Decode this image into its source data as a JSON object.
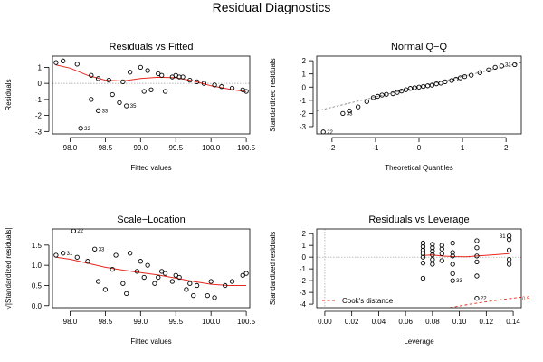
{
  "title": "Residual Diagnostics",
  "chart_data": [
    {
      "type": "scatter",
      "title": "Residuals vs Fitted",
      "xlabel": "Fitted values",
      "ylabel": "Residuals",
      "xlim": [
        97.75,
        100.55
      ],
      "ylim": [
        -3.15,
        1.7
      ],
      "xticks": [
        98.0,
        98.5,
        99.0,
        99.5,
        100.0,
        100.5
      ],
      "xtick_labels": [
        "98.0",
        "98.5",
        "99.0",
        "99.5",
        "100.0",
        "100.5"
      ],
      "yticks": [
        -3,
        -2,
        -1,
        0,
        1
      ],
      "ytick_labels": [
        "-3",
        "-2",
        "-1",
        "0",
        "1"
      ],
      "refline_y": 0,
      "points": [
        {
          "x": 97.8,
          "y": 1.3
        },
        {
          "x": 97.9,
          "y": 1.4
        },
        {
          "x": 98.1,
          "y": 1.2
        },
        {
          "x": 98.3,
          "y": 0.5
        },
        {
          "x": 98.4,
          "y": 0.3
        },
        {
          "x": 98.55,
          "y": 0.2
        },
        {
          "x": 98.75,
          "y": 0.1
        },
        {
          "x": 98.85,
          "y": 0.7
        },
        {
          "x": 99.0,
          "y": 1.0
        },
        {
          "x": 99.1,
          "y": 0.8
        },
        {
          "x": 99.25,
          "y": 0.6
        },
        {
          "x": 99.3,
          "y": 0.5
        },
        {
          "x": 99.45,
          "y": 0.4
        },
        {
          "x": 99.5,
          "y": 0.5
        },
        {
          "x": 99.55,
          "y": 0.4
        },
        {
          "x": 99.7,
          "y": 0.2
        },
        {
          "x": 99.8,
          "y": 0.1
        },
        {
          "x": 99.9,
          "y": 0.0
        },
        {
          "x": 100.05,
          "y": -0.1
        },
        {
          "x": 100.15,
          "y": -0.2
        },
        {
          "x": 100.3,
          "y": -0.3
        },
        {
          "x": 100.45,
          "y": -0.4
        },
        {
          "x": 100.5,
          "y": -0.5
        },
        {
          "x": 98.3,
          "y": -1.0
        },
        {
          "x": 98.4,
          "y": -1.7
        },
        {
          "x": 98.6,
          "y": -0.7
        },
        {
          "x": 98.7,
          "y": -1.2
        },
        {
          "x": 98.8,
          "y": -1.4
        },
        {
          "x": 99.05,
          "y": -0.5
        },
        {
          "x": 99.15,
          "y": -0.4
        },
        {
          "x": 99.35,
          "y": -0.5
        },
        {
          "x": 99.6,
          "y": 0.4
        },
        {
          "x": 98.15,
          "y": -2.8
        }
      ],
      "smooth": [
        {
          "x": 97.8,
          "y": 1.15
        },
        {
          "x": 98.0,
          "y": 0.95
        },
        {
          "x": 98.25,
          "y": 0.5
        },
        {
          "x": 98.5,
          "y": 0.2
        },
        {
          "x": 98.75,
          "y": 0.15
        },
        {
          "x": 99.0,
          "y": 0.3
        },
        {
          "x": 99.25,
          "y": 0.38
        },
        {
          "x": 99.5,
          "y": 0.35
        },
        {
          "x": 99.75,
          "y": 0.15
        },
        {
          "x": 100.0,
          "y": -0.15
        },
        {
          "x": 100.25,
          "y": -0.35
        },
        {
          "x": 100.5,
          "y": -0.52
        }
      ],
      "annotations": [
        {
          "label": "22",
          "x": 98.15,
          "y": -2.8
        },
        {
          "label": "33",
          "x": 98.4,
          "y": -1.7
        },
        {
          "label": "35",
          "x": 98.8,
          "y": -1.4
        }
      ]
    },
    {
      "type": "scatter",
      "title": "Normal Q−Q",
      "xlabel": "Theoretical Quantiles",
      "ylabel": "Standardized residuals",
      "xlim": [
        -2.35,
        2.35
      ],
      "ylim": [
        -3.55,
        2.35
      ],
      "xticks": [
        -2,
        -1,
        0,
        1,
        2
      ],
      "xtick_labels": [
        "-2",
        "-1",
        "0",
        "1",
        "2"
      ],
      "yticks": [
        -3,
        -2,
        -1,
        0,
        1,
        2
      ],
      "ytick_labels": [
        "-3",
        "-2",
        "-1",
        "0",
        "1",
        "2"
      ],
      "qq_line": [
        {
          "x": -2.35,
          "y": -1.8
        },
        {
          "x": 2.35,
          "y": 1.85
        }
      ],
      "points": [
        {
          "x": -2.2,
          "y": -3.4
        },
        {
          "x": -1.75,
          "y": -2.0
        },
        {
          "x": -1.6,
          "y": -1.8
        },
        {
          "x": -1.4,
          "y": -1.5
        },
        {
          "x": -1.2,
          "y": -1.1
        },
        {
          "x": -1.05,
          "y": -0.8
        },
        {
          "x": -0.95,
          "y": -0.7
        },
        {
          "x": -0.85,
          "y": -0.6
        },
        {
          "x": -0.75,
          "y": -0.55
        },
        {
          "x": -0.6,
          "y": -0.5
        },
        {
          "x": -0.5,
          "y": -0.4
        },
        {
          "x": -0.4,
          "y": -0.3
        },
        {
          "x": -0.3,
          "y": -0.2
        },
        {
          "x": -0.2,
          "y": -0.1
        },
        {
          "x": -0.1,
          "y": -0.05
        },
        {
          "x": 0.0,
          "y": 0.0
        },
        {
          "x": 0.1,
          "y": 0.05
        },
        {
          "x": 0.2,
          "y": 0.1
        },
        {
          "x": 0.3,
          "y": 0.15
        },
        {
          "x": 0.4,
          "y": 0.25
        },
        {
          "x": 0.5,
          "y": 0.3
        },
        {
          "x": 0.6,
          "y": 0.4
        },
        {
          "x": 0.75,
          "y": 0.5
        },
        {
          "x": 0.85,
          "y": 0.6
        },
        {
          "x": 0.95,
          "y": 0.7
        },
        {
          "x": 1.05,
          "y": 0.8
        },
        {
          "x": 1.2,
          "y": 0.9
        },
        {
          "x": 1.4,
          "y": 1.1
        },
        {
          "x": 1.6,
          "y": 1.3
        },
        {
          "x": 1.75,
          "y": 1.5
        },
        {
          "x": 1.9,
          "y": 1.6
        },
        {
          "x": 2.2,
          "y": 1.7
        }
      ],
      "annotations": [
        {
          "label": "22",
          "x": -2.2,
          "y": -3.4
        },
        {
          "label": "33",
          "x": -1.75,
          "y": -2.0
        },
        {
          "label": "31",
          "x": 2.2,
          "y": 1.7
        }
      ]
    },
    {
      "type": "scatter",
      "title": "Scale−Location",
      "xlabel": "Fitted values",
      "ylabel": "√|Standardized residuals|",
      "xlim": [
        97.75,
        100.55
      ],
      "ylim": [
        -0.05,
        1.9
      ],
      "xticks": [
        98.0,
        98.5,
        99.0,
        99.5,
        100.0,
        100.5
      ],
      "xtick_labels": [
        "98.0",
        "98.5",
        "99.0",
        "99.5",
        "100.0",
        "100.5"
      ],
      "yticks": [
        0.0,
        0.5,
        1.0,
        1.5
      ],
      "ytick_labels": [
        "0.0",
        "0.5",
        "1.0",
        "1.5"
      ],
      "points": [
        {
          "x": 97.8,
          "y": 1.25
        },
        {
          "x": 97.9,
          "y": 1.3
        },
        {
          "x": 98.05,
          "y": 1.85
        },
        {
          "x": 98.1,
          "y": 1.2
        },
        {
          "x": 98.25,
          "y": 1.1
        },
        {
          "x": 98.35,
          "y": 1.4
        },
        {
          "x": 98.4,
          "y": 0.6
        },
        {
          "x": 98.5,
          "y": 0.4
        },
        {
          "x": 98.6,
          "y": 0.9
        },
        {
          "x": 98.65,
          "y": 1.25
        },
        {
          "x": 98.75,
          "y": 0.55
        },
        {
          "x": 98.8,
          "y": 0.3
        },
        {
          "x": 98.85,
          "y": 1.3
        },
        {
          "x": 98.95,
          "y": 0.85
        },
        {
          "x": 99.0,
          "y": 1.1
        },
        {
          "x": 99.05,
          "y": 0.7
        },
        {
          "x": 99.1,
          "y": 1.0
        },
        {
          "x": 99.2,
          "y": 0.55
        },
        {
          "x": 99.25,
          "y": 0.7
        },
        {
          "x": 99.3,
          "y": 0.85
        },
        {
          "x": 99.35,
          "y": 0.8
        },
        {
          "x": 99.45,
          "y": 0.6
        },
        {
          "x": 99.5,
          "y": 0.75
        },
        {
          "x": 99.55,
          "y": 0.7
        },
        {
          "x": 99.65,
          "y": 0.4
        },
        {
          "x": 99.7,
          "y": 0.55
        },
        {
          "x": 99.75,
          "y": 0.25
        },
        {
          "x": 99.8,
          "y": 0.5
        },
        {
          "x": 99.95,
          "y": 0.25
        },
        {
          "x": 100.0,
          "y": 0.6
        },
        {
          "x": 100.05,
          "y": 0.2
        },
        {
          "x": 100.2,
          "y": 0.5
        },
        {
          "x": 100.3,
          "y": 0.6
        },
        {
          "x": 100.45,
          "y": 0.75
        },
        {
          "x": 100.5,
          "y": 0.8
        }
      ],
      "smooth": [
        {
          "x": 97.8,
          "y": 1.2
        },
        {
          "x": 98.0,
          "y": 1.15
        },
        {
          "x": 98.25,
          "y": 1.05
        },
        {
          "x": 98.5,
          "y": 0.95
        },
        {
          "x": 98.75,
          "y": 0.88
        },
        {
          "x": 99.0,
          "y": 0.82
        },
        {
          "x": 99.25,
          "y": 0.76
        },
        {
          "x": 99.5,
          "y": 0.68
        },
        {
          "x": 99.75,
          "y": 0.6
        },
        {
          "x": 100.0,
          "y": 0.53
        },
        {
          "x": 100.25,
          "y": 0.5
        },
        {
          "x": 100.5,
          "y": 0.5
        }
      ],
      "annotations": [
        {
          "label": "22",
          "x": 98.05,
          "y": 1.85
        },
        {
          "label": "31",
          "x": 97.9,
          "y": 1.3
        },
        {
          "label": "33",
          "x": 98.35,
          "y": 1.4
        }
      ]
    },
    {
      "type": "scatter",
      "title": "Residuals vs Leverage",
      "xlabel": "Leverage",
      "ylabel": "Standardized residuals",
      "xlim": [
        -0.006,
        0.146
      ],
      "ylim": [
        -4.3,
        2.4
      ],
      "xticks": [
        0.0,
        0.02,
        0.04,
        0.06,
        0.08,
        0.1,
        0.12,
        0.14
      ],
      "xtick_labels": [
        "0.00",
        "0.02",
        "0.04",
        "0.06",
        "0.08",
        "0.10",
        "0.12",
        "0.14"
      ],
      "yticks": [
        -4,
        -3,
        -2,
        -1,
        0,
        1,
        2
      ],
      "ytick_labels": [
        "-4",
        "-3",
        "-2",
        "-1",
        "0",
        "1",
        "2"
      ],
      "refline_y": 0,
      "refline_x": 0,
      "points": [
        {
          "x": 0.073,
          "y": 1.2
        },
        {
          "x": 0.073,
          "y": 0.9
        },
        {
          "x": 0.073,
          "y": 0.6
        },
        {
          "x": 0.073,
          "y": 0.3
        },
        {
          "x": 0.073,
          "y": 0.0
        },
        {
          "x": 0.073,
          "y": -0.5
        },
        {
          "x": 0.073,
          "y": -1.8
        },
        {
          "x": 0.08,
          "y": 1.1
        },
        {
          "x": 0.08,
          "y": 0.8
        },
        {
          "x": 0.08,
          "y": 0.5
        },
        {
          "x": 0.08,
          "y": 0.2
        },
        {
          "x": 0.08,
          "y": -0.2
        },
        {
          "x": 0.08,
          "y": -0.6
        },
        {
          "x": 0.087,
          "y": 1.0
        },
        {
          "x": 0.087,
          "y": 0.7
        },
        {
          "x": 0.087,
          "y": 0.3
        },
        {
          "x": 0.087,
          "y": -0.3
        },
        {
          "x": 0.095,
          "y": 1.2
        },
        {
          "x": 0.095,
          "y": 0.4
        },
        {
          "x": 0.095,
          "y": 0.1
        },
        {
          "x": 0.095,
          "y": -0.6
        },
        {
          "x": 0.095,
          "y": -1.4
        },
        {
          "x": 0.095,
          "y": -2.0
        },
        {
          "x": 0.113,
          "y": 1.4
        },
        {
          "x": 0.113,
          "y": 0.8
        },
        {
          "x": 0.113,
          "y": 0.1
        },
        {
          "x": 0.113,
          "y": -0.4
        },
        {
          "x": 0.113,
          "y": -1.6
        },
        {
          "x": 0.113,
          "y": -3.5
        },
        {
          "x": 0.137,
          "y": 1.8
        },
        {
          "x": 0.137,
          "y": 1.5
        },
        {
          "x": 0.137,
          "y": 0.6
        },
        {
          "x": 0.137,
          "y": -0.2
        },
        {
          "x": 0.137,
          "y": -0.6
        }
      ],
      "smooth": [
        {
          "x": 0.073,
          "y": 0.15
        },
        {
          "x": 0.08,
          "y": 0.18
        },
        {
          "x": 0.087,
          "y": 0.1
        },
        {
          "x": 0.095,
          "y": 0.05
        },
        {
          "x": 0.105,
          "y": 0.03
        },
        {
          "x": 0.113,
          "y": 0.1
        },
        {
          "x": 0.125,
          "y": 0.2
        },
        {
          "x": 0.137,
          "y": 0.3
        }
      ],
      "cooks_distance": {
        "label": "0.5",
        "curve": [
          {
            "x": 0.093,
            "y": -4.3
          },
          {
            "x": 0.1,
            "y": -4.15
          },
          {
            "x": 0.11,
            "y": -3.96
          },
          {
            "x": 0.12,
            "y": -3.79
          },
          {
            "x": 0.13,
            "y": -3.63
          },
          {
            "x": 0.14,
            "y": -3.48
          },
          {
            "x": 0.146,
            "y": -3.4
          }
        ]
      },
      "legend": {
        "label": "Cook's distance",
        "position": "bottom-left"
      },
      "annotations": [
        {
          "label": "31",
          "x": 0.137,
          "y": 1.8
        },
        {
          "label": "22",
          "x": 0.113,
          "y": -3.5
        },
        {
          "label": "33",
          "x": 0.095,
          "y": -2.0
        }
      ]
    }
  ]
}
